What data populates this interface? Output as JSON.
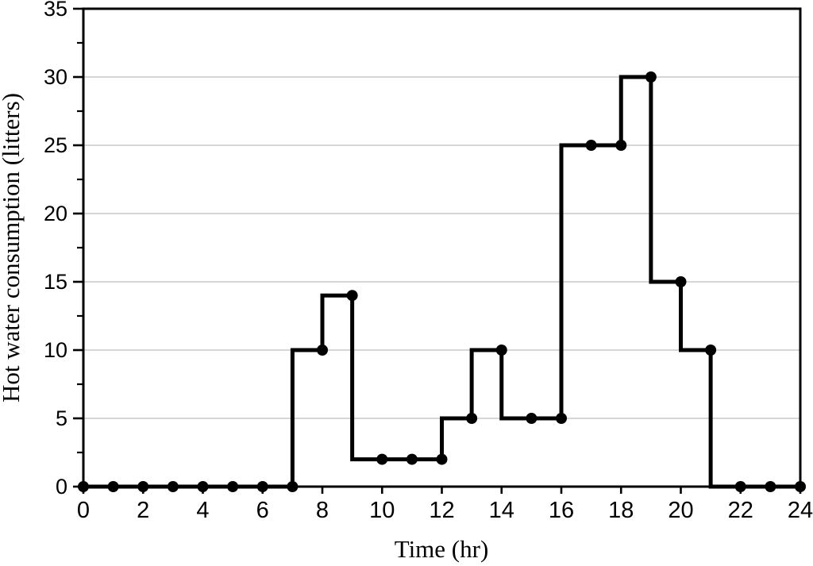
{
  "chart_data": {
    "type": "line",
    "subtype": "step-pre",
    "title": "",
    "xlabel": "Time (hr)",
    "ylabel": "Hot water consumption (litters)",
    "series": [
      {
        "name": "Hot water consumption",
        "x": [
          0,
          1,
          2,
          3,
          4,
          5,
          6,
          7,
          8,
          9,
          10,
          11,
          12,
          13,
          14,
          15,
          16,
          17,
          18,
          19,
          20,
          21,
          22,
          23,
          24
        ],
        "values": [
          0,
          0,
          0,
          0,
          0,
          0,
          0,
          0,
          10,
          14,
          2,
          2,
          2,
          5,
          10,
          5,
          5,
          25,
          25,
          30,
          15,
          10,
          0,
          0,
          0
        ]
      }
    ],
    "xlim": [
      0,
      24
    ],
    "ylim": [
      0,
      35
    ],
    "x_major_ticks": [
      0,
      2,
      4,
      6,
      8,
      10,
      12,
      14,
      16,
      18,
      20,
      22,
      24
    ],
    "y_major_ticks": [
      0,
      5,
      10,
      15,
      20,
      25,
      30,
      35
    ],
    "y_minor_ticks": [
      2.5,
      7.5,
      12.5,
      17.5,
      22.5,
      27.5,
      32.5
    ],
    "grid": "horizontal-major",
    "legend": "none",
    "marker": "circle",
    "colors": {
      "line": "#000000",
      "marker": "#000000",
      "frame": "#000000",
      "gridline": "#c8c8c8",
      "background": "#ffffff",
      "text": "#000000"
    }
  }
}
